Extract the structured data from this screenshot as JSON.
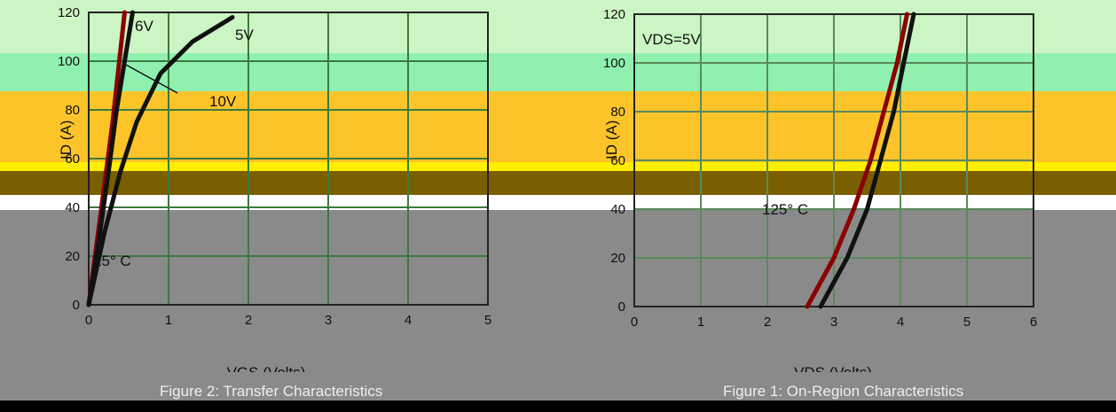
{
  "bands": [
    {
      "name": "band-light-green",
      "color": "#ccf5c4",
      "top": 0
    },
    {
      "name": "band-green",
      "color": "#8ff0b0"
    },
    {
      "name": "band-orange",
      "color": "#fdc42a"
    },
    {
      "name": "band-yellow",
      "color": "#ffee00"
    },
    {
      "name": "band-olive",
      "color": "#7a5f00"
    },
    {
      "name": "band-gray",
      "color": "#8a8a8a"
    }
  ],
  "chart_data": [
    {
      "type": "line",
      "title": "",
      "ylabel": "I_D (A)",
      "xlabel": "V_DS (Volts)",
      "xlim": [
        0,
        5
      ],
      "ylim": [
        0,
        120
      ],
      "yticks": [
        "120",
        "100",
        "80",
        "60",
        "40",
        "20",
        "0"
      ],
      "xticks": [
        "0",
        "1",
        "2",
        "3",
        "4",
        "5"
      ],
      "series": [
        {
          "name": "10V",
          "points": [
            [
              0,
              0
            ],
            [
              0.1,
              25
            ],
            [
              0.2,
              50
            ],
            [
              0.3,
              75
            ],
            [
              0.35,
              90
            ],
            [
              0.4,
              105
            ],
            [
              0.45,
              120
            ]
          ]
        },
        {
          "name": "6V",
          "points": [
            [
              0,
              0
            ],
            [
              0.12,
              25
            ],
            [
              0.25,
              55
            ],
            [
              0.35,
              80
            ],
            [
              0.45,
              100
            ],
            [
              0.55,
              120
            ]
          ]
        },
        {
          "name": "5V",
          "points": [
            [
              0,
              0
            ],
            [
              0.2,
              30
            ],
            [
              0.4,
              55
            ],
            [
              0.6,
              75
            ],
            [
              0.9,
              95
            ],
            [
              1.3,
              108
            ],
            [
              1.8,
              118
            ]
          ]
        }
      ],
      "annotations": [
        "6V",
        "5V",
        "10V"
      ]
    },
    {
      "type": "line",
      "title": "",
      "ylabel": "I_D (A)",
      "xlabel": "V_GS (Volts)",
      "xlim": [
        0,
        6
      ],
      "ylim": [
        0,
        120
      ],
      "yticks": [
        "120",
        "100",
        "80",
        "60",
        "40",
        "20",
        "0"
      ],
      "xticks": [
        "0",
        "1",
        "2",
        "3",
        "4",
        "5",
        "6"
      ],
      "series": [
        {
          "name": "25° C",
          "points": [
            [
              2.8,
              0
            ],
            [
              3.2,
              20
            ],
            [
              3.5,
              40
            ],
            [
              3.7,
              60
            ],
            [
              3.9,
              80
            ],
            [
              4.05,
              100
            ],
            [
              4.2,
              120
            ]
          ]
        },
        {
          "name": "125° C",
          "points": [
            [
              2.6,
              0
            ],
            [
              3.0,
              20
            ],
            [
              3.3,
              40
            ],
            [
              3.55,
              60
            ],
            [
              3.75,
              80
            ],
            [
              3.95,
              100
            ],
            [
              4.1,
              120
            ]
          ]
        }
      ],
      "annotations": [
        "V_DS=5V",
        "125° C",
        "25° C"
      ]
    }
  ],
  "text": {
    "vds_annot": "V",
    "vds_sub": "DS",
    "vds_val": "=5V",
    "xlabel_right": "V",
    "xlabel_right_sub": "DS",
    "xlabel_right_unit": " (Volts)",
    "xlabel_left": "V",
    "xlabel_left_sub": "GS",
    "xlabel_left_unit": " (Volts)",
    "ylabel_main": "I",
    "ylabel_sub": "D",
    "ylabel_unit": "(A)",
    "caption_left": "Figure 2: Transfer Characteristics",
    "caption_right": "Figure 1: On-Region Characteristics",
    "lbl_6v": "6V",
    "lbl_5v": "5V",
    "lbl_10v": "10V",
    "lbl_25c": "25° C",
    "lbl_125c": "125° C"
  }
}
